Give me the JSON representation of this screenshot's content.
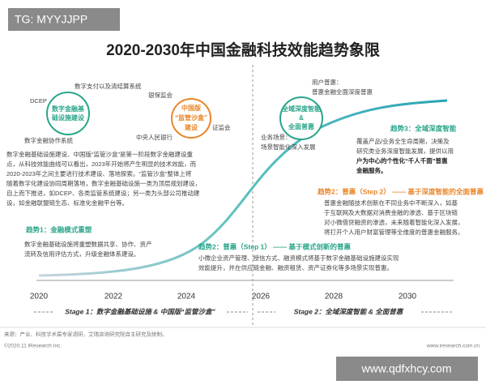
{
  "header": {
    "watermark": "TG: MYYJJPP",
    "title": "2020-2030年中国金融科技效能趋势象限"
  },
  "stage1": {
    "labels": [
      "DCEP",
      "数字支付以及清结算系统",
      "银保监会",
      "中央人民银行",
      "证监会",
      "数字金融协作系统"
    ],
    "bubble_green": [
      "数字金融基",
      "础设施建设"
    ],
    "bubble_orange": [
      "中国版",
      "“监管沙盒”",
      "建设"
    ],
    "paragraph": [
      "数字金融基础设施建设、中国版“监管沙盒”是第一阶段数字金融建设重",
      "点，从科技效能曲线可以看出，2023年开始将产生明显的技术效能，而",
      "2020-2023年之间主要进行技术建设、落地探索。“监管沙盒”整体上将",
      "随着数字化建设协同周期落地，数字金融基础设施一类为顶层规划建设，",
      "自上而下推进，如DCEP、各类监管系统建设；另一类为头部公司推动建",
      "设，如金融联盟链生态、标准化金融平台等。"
    ],
    "trend1_title": "趋势1：金融模式重塑",
    "trend1_text": [
      "数字金融基础设施将重塑数据共享、协作、资产",
      "流转及信用评估方式，升级金融体系建设。"
    ]
  },
  "trend2_step1": {
    "title": "趋势2：普惠（Step 1） —— 基于模式创新的普惠",
    "text": [
      "小微企业资产管理、授信方式、融资模式将基于数字金融基础设施建设实现",
      "效能提升，并在供应链金融、融资租赁、资产证券化等多场景实现普惠。"
    ]
  },
  "stage2": {
    "user_label": "用户普惠：",
    "user_text": "普惠金融全面深度普惠",
    "bubble": [
      "全域深度智能",
      "&",
      "全面普惠"
    ],
    "scene_label": "业务场景：",
    "scene_text": "场景智能化深入发展",
    "trend3_title": "趋势3：全域深度智能",
    "trend3_text": [
      "覆盖产品/业务全生命周期，决策及",
      "研究类业务深度智能发展，提供以用",
      "户为中心的个性化“千人千面”普惠",
      "金融服务。"
    ]
  },
  "trend2_step2": {
    "title": "趋势2：普惠（Step 2） —— 基于深度智能的全面普惠",
    "text": [
      "普惠金融随技术创新在不同业务中不断深入，如基",
      "于互联网及大数据对消费金融的渗透、基于区块链",
      "对小微借贷融资的渗透，未来随着智能化深入发展，",
      "将打开个人用户财富管理等全维度的普惠金融服务。"
    ]
  },
  "axis": {
    "years": [
      "2020",
      "2022",
      "2024",
      "2026",
      "2028",
      "2030"
    ],
    "stage1": "Stage 1：数字金融基础设施 & 中国版“监管沙盒”",
    "stage2": "Stage 2：全域深度智能 & 全面普惠"
  },
  "footer": {
    "source": "来源：产业、科技学术届专家调研，艾瑞咨询研究院自主研究及绘制。",
    "copyright": "©2020.11 iResearch Inc.",
    "site": "www.iresearch.com.cn",
    "watermark": "www.qdfxhcy.com"
  }
}
